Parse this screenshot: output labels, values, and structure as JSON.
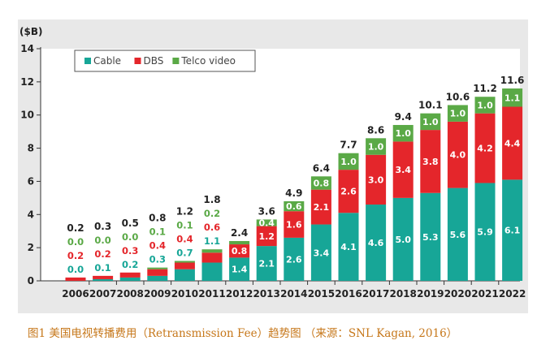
{
  "caption": "图1 美国电视转播费用（Retransmission Fee）趋势图 （来源：SNL Kagan, 2016）",
  "chart_data": {
    "type": "bar",
    "stacked": true,
    "unit_label": "($B)",
    "categories": [
      "2006",
      "2007",
      "2008",
      "2009",
      "2010",
      "2011",
      "2012",
      "2013",
      "2014",
      "2015",
      "2016",
      "2017",
      "2018",
      "2019",
      "2020",
      "2021",
      "2022"
    ],
    "series": [
      {
        "name": "Cable",
        "color": "#17a697",
        "values": [
          0.0,
          0.1,
          0.2,
          0.3,
          0.7,
          1.1,
          1.4,
          2.1,
          2.6,
          3.4,
          4.1,
          4.6,
          5.0,
          5.3,
          5.6,
          5.9,
          6.1
        ]
      },
      {
        "name": "DBS",
        "color": "#e4262b",
        "values": [
          0.2,
          0.2,
          0.3,
          0.4,
          0.4,
          0.6,
          0.8,
          1.2,
          1.6,
          2.1,
          2.6,
          3.0,
          3.4,
          3.8,
          4.0,
          4.2,
          4.4
        ]
      },
      {
        "name": "Telco video",
        "color": "#5aa946",
        "values": [
          0.0,
          0.0,
          0.0,
          0.1,
          0.1,
          0.2,
          0.2,
          0.4,
          0.6,
          0.8,
          1.0,
          1.0,
          1.0,
          1.0,
          1.0,
          1.0,
          1.1
        ]
      }
    ],
    "totals": [
      "0.2",
      "0.3",
      "0.5",
      "0.8",
      "1.2",
      "1.8",
      "2.4",
      "3.6",
      "4.9",
      "6.4",
      "7.7",
      "8.6",
      "9.4",
      "10.1",
      "10.6",
      "11.2",
      "11.6"
    ],
    "yticks": [
      0,
      2,
      4,
      6,
      8,
      10,
      12,
      14
    ],
    "ylim": [
      0,
      14
    ],
    "grid": false,
    "legend_position": "top-left",
    "colors": {
      "frame": "#e8e8e8",
      "plot": "#ffffff",
      "text": "#222222",
      "caption": "#c6771a"
    }
  }
}
